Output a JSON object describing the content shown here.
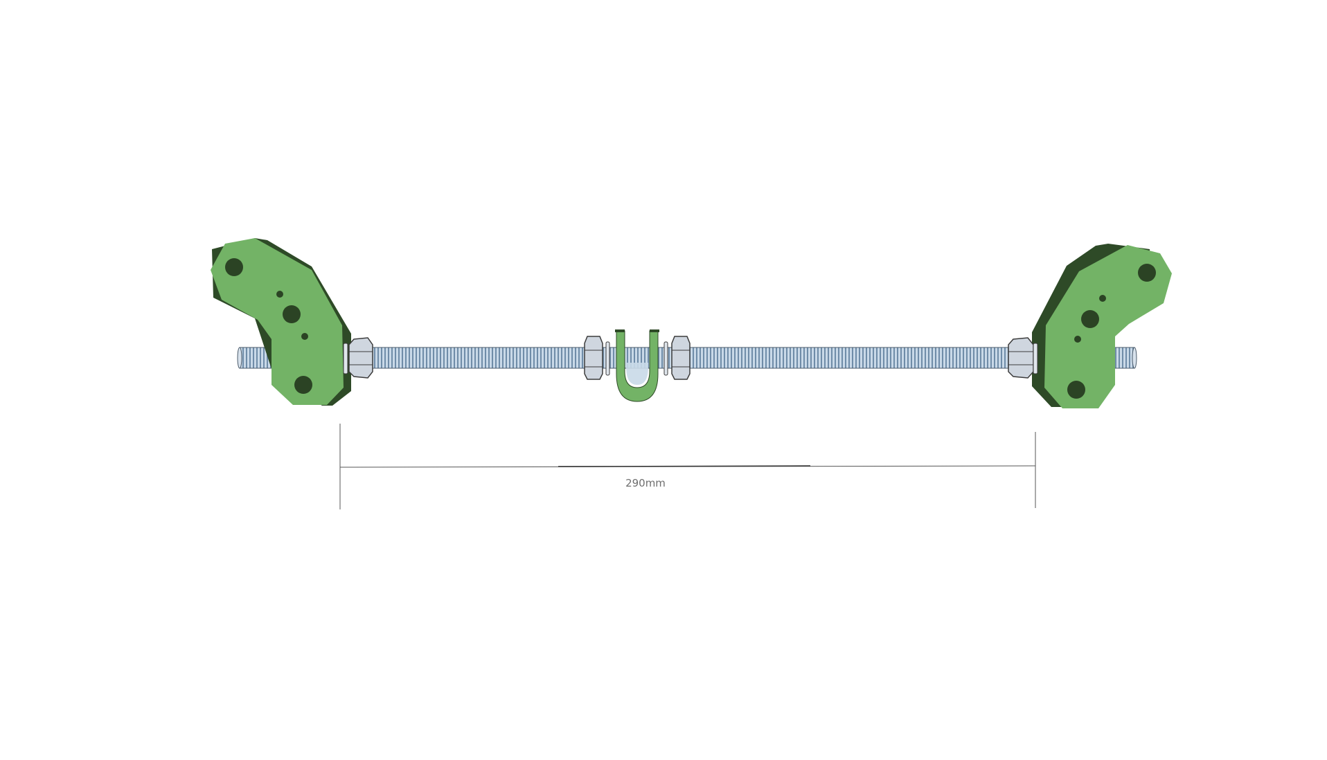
{
  "dimension": {
    "label": "290mm"
  },
  "colors": {
    "background": "#ffffff",
    "bracket_face": "#73b366",
    "bracket_side": "#2e4a27",
    "bracket_hole": "#2b4324",
    "rod_light": "#b9cde0",
    "rod_dark": "#6f8ca8",
    "nut_fill": "#cfd6df",
    "nut_stroke": "#3b3b3b",
    "dimension_line": "#555555"
  }
}
